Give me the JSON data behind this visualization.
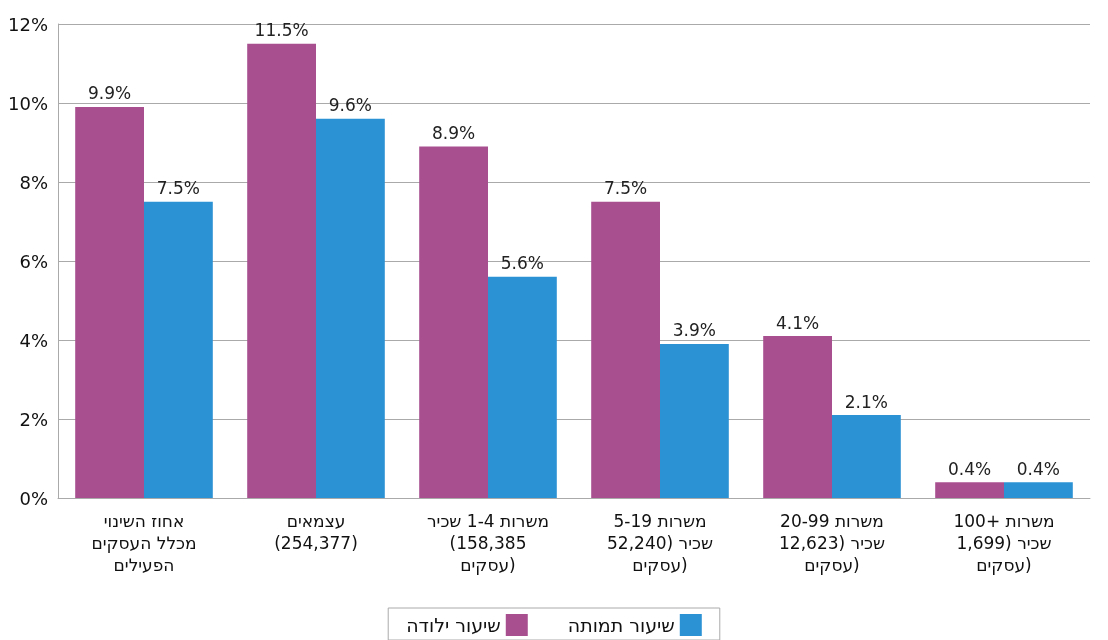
{
  "chart_data": {
    "type": "bar",
    "categories": [
      "אחוז השינוי מכלל העסקים הפעילים",
      "עצמאים (254,377)",
      "משרות 1-4 שכיר (158,385 עסקים)",
      "משרות 5-19 שכיר (52,240 עסקים)",
      "משרות 20-99 שכיר (12,623 עסקים)",
      "משרות +100 שכיר (1,699 עסקים)"
    ],
    "series": [
      {
        "name": "שיעור ילודה",
        "color": "#a84f8f",
        "values": [
          9.9,
          11.5,
          8.9,
          7.5,
          4.1,
          0.4
        ],
        "value_labels": [
          "9.9%",
          "11.5%",
          "8.9%",
          "7.5%",
          "4.1%",
          "0.4%"
        ]
      },
      {
        "name": "שיעור תמותה",
        "color": "#2b92d4",
        "values": [
          7.5,
          9.6,
          5.6,
          3.9,
          2.1,
          0.4
        ],
        "value_labels": [
          "7.5%",
          "9.6%",
          "5.6%",
          "3.9%",
          "2.1%",
          "0.4%"
        ]
      }
    ],
    "ylim": [
      0,
      12
    ],
    "yticks": [
      {
        "value": 0,
        "label": "0%"
      },
      {
        "value": 2,
        "label": "2%"
      },
      {
        "value": 4,
        "label": "4%"
      },
      {
        "value": 6,
        "label": "6%"
      },
      {
        "value": 8,
        "label": "8%"
      },
      {
        "value": 10,
        "label": "10%"
      },
      {
        "value": 12,
        "label": "12%"
      }
    ],
    "grid": "y",
    "legend": "bottom"
  }
}
